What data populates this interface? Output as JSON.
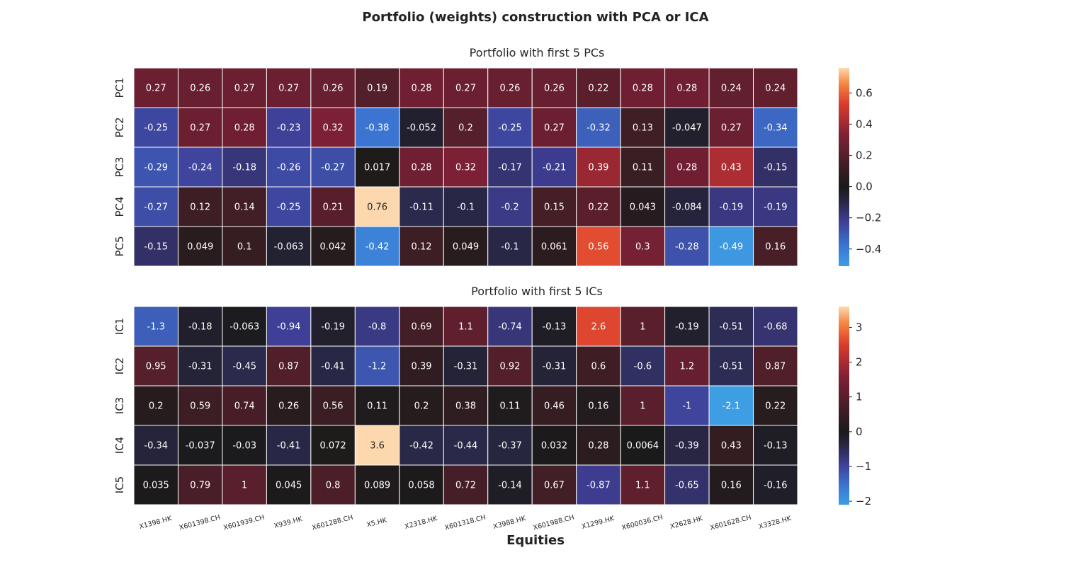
{
  "chart_data": {
    "type": "heatmap",
    "title": "Portfolio (weights) construction with PCA or ICA",
    "xlabel": "Equities",
    "columns": [
      "X1398.HK",
      "X601398.CH",
      "X601939.CH",
      "X939.HK",
      "X601288.CH",
      "X5.HK",
      "X2318.HK",
      "X601318.CH",
      "X3988.HK",
      "X601988.CH",
      "X1299.HK",
      "X600036.CH",
      "X2628.HK",
      "X601628.CH",
      "X3328.HK"
    ],
    "panels": [
      {
        "title": "Portfolio with first 5 PCs",
        "rows": [
          "PC1",
          "PC2",
          "PC3",
          "PC4",
          "PC5"
        ],
        "labels": [
          [
            "0.27",
            "0.26",
            "0.27",
            "0.27",
            "0.26",
            "0.19",
            "0.28",
            "0.27",
            "0.26",
            "0.26",
            "0.22",
            "0.28",
            "0.28",
            "0.24",
            "0.24"
          ],
          [
            "-0.25",
            "0.27",
            "0.28",
            "-0.23",
            "0.32",
            "-0.38",
            "-0.052",
            "0.2",
            "-0.25",
            "0.27",
            "-0.32",
            "0.13",
            "-0.047",
            "0.27",
            "-0.34"
          ],
          [
            "-0.29",
            "-0.24",
            "-0.18",
            "-0.26",
            "-0.27",
            "0.017",
            "0.28",
            "0.32",
            "-0.17",
            "-0.21",
            "0.39",
            "0.11",
            "0.28",
            "0.43",
            "-0.15"
          ],
          [
            "-0.27",
            "0.12",
            "0.14",
            "-0.25",
            "0.21",
            "0.76",
            "-0.11",
            "-0.1",
            "-0.2",
            "0.15",
            "0.22",
            "0.043",
            "-0.084",
            "-0.19",
            "-0.19"
          ],
          [
            "-0.15",
            "0.049",
            "0.1",
            "-0.063",
            "0.042",
            "-0.42",
            "0.12",
            "0.049",
            "-0.1",
            "0.061",
            "0.56",
            "0.3",
            "-0.28",
            "-0.49",
            "0.16"
          ]
        ],
        "vmin": -0.51,
        "vmax": 0.76,
        "colorbar_ticks": [
          "0.6",
          "0.4",
          "0.2",
          "0.0",
          "−0.2",
          "−0.4"
        ],
        "colorbar_tick_values": [
          0.6,
          0.4,
          0.2,
          0.0,
          -0.2,
          -0.4
        ]
      },
      {
        "title": "Portfolio with first 5 ICs",
        "rows": [
          "IC1",
          "IC2",
          "IC3",
          "IC4",
          "IC5"
        ],
        "labels": [
          [
            "-1.3",
            "-0.18",
            "-0.063",
            "-0.94",
            "-0.19",
            "-0.8",
            "0.69",
            "1.1",
            "-0.74",
            "-0.13",
            "2.6",
            "1",
            "-0.19",
            "-0.51",
            "-0.68"
          ],
          [
            "0.95",
            "-0.31",
            "-0.45",
            "0.87",
            "-0.41",
            "-1.2",
            "0.39",
            "-0.31",
            "0.92",
            "-0.31",
            "0.6",
            "-0.6",
            "1.2",
            "-0.51",
            "0.87"
          ],
          [
            "0.2",
            "0.59",
            "0.74",
            "0.26",
            "0.56",
            "0.11",
            "0.2",
            "0.38",
            "0.11",
            "0.46",
            "0.16",
            "1",
            "-1",
            "-2.1",
            "0.22"
          ],
          [
            "-0.34",
            "-0.037",
            "-0.03",
            "-0.41",
            "0.072",
            "3.6",
            "-0.42",
            "-0.44",
            "-0.37",
            "0.032",
            "0.28",
            "0.0064",
            "-0.39",
            "0.43",
            "-0.13"
          ],
          [
            "0.035",
            "0.79",
            "1",
            "0.045",
            "0.8",
            "0.089",
            "0.058",
            "0.72",
            "-0.14",
            "0.67",
            "-0.87",
            "1.1",
            "-0.65",
            "0.16",
            "-0.16"
          ]
        ],
        "vmin": -2.1,
        "vmax": 3.6,
        "colorbar_ticks": [
          "3",
          "2",
          "1",
          "0",
          "−1",
          "−2"
        ],
        "colorbar_tick_values": [
          3,
          2,
          1,
          0,
          -1,
          -2
        ]
      }
    ]
  }
}
